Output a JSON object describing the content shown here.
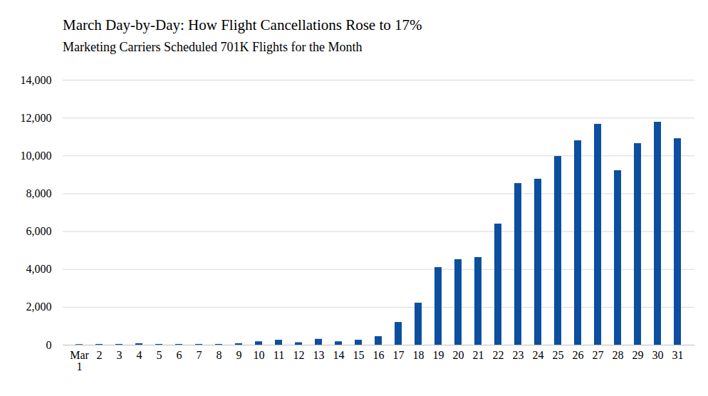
{
  "chart_data": {
    "type": "bar",
    "title": "March Day-by-Day: How Flight Cancellations Rose to 17%",
    "subtitle": "Marketing Carriers Scheduled 701K Flights for the Month",
    "categories": [
      "Mar\n1",
      "2",
      "3",
      "4",
      "5",
      "6",
      "7",
      "8",
      "9",
      "10",
      "11",
      "12",
      "13",
      "14",
      "15",
      "16",
      "17",
      "18",
      "19",
      "20",
      "21",
      "22",
      "23",
      "24",
      "25",
      "26",
      "27",
      "28",
      "29",
      "30",
      "31"
    ],
    "values": [
      30,
      40,
      40,
      80,
      40,
      40,
      40,
      40,
      80,
      180,
      260,
      130,
      310,
      180,
      260,
      450,
      1200,
      2220,
      4100,
      4520,
      4630,
      6400,
      8540,
      8770,
      9970,
      10800,
      11670,
      9220,
      10650,
      11780,
      10910
    ],
    "color": "#0b4f9e",
    "ylim": [
      0,
      14000
    ],
    "yticks": [
      0,
      {
        "value": 2000,
        "label": "2,000"
      },
      {
        "value": 4000,
        "label": "4,000"
      },
      {
        "value": 6000,
        "label": "6,000"
      },
      {
        "value": 8000,
        "label": "8,000"
      },
      {
        "value": 10000,
        "label": "10,000"
      },
      {
        "value": 12000,
        "label": "12,000"
      },
      {
        "value": 14000,
        "label": "14,000"
      }
    ],
    "grid": true
  }
}
